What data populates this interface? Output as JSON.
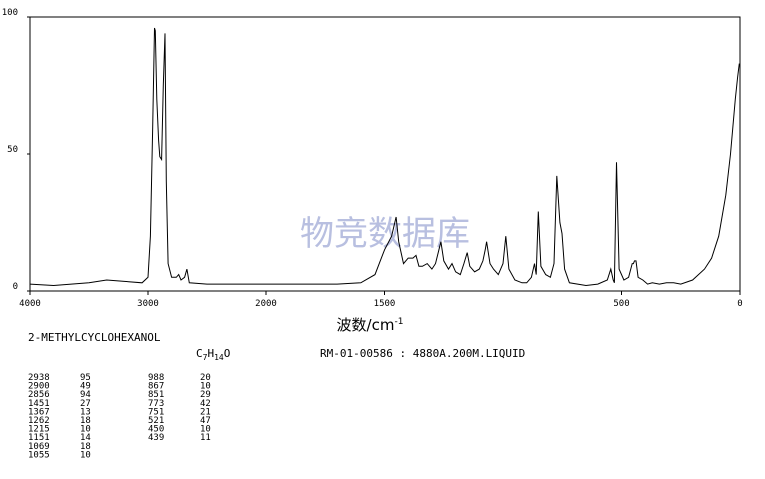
{
  "chart_data": {
    "type": "line",
    "color": "#000000",
    "xlabel": [
      "波数/cm",
      "-1"
    ],
    "watermark": "物竞数据库",
    "x": [
      4000,
      3800,
      3500,
      3350,
      3200,
      3050,
      3000,
      2980,
      2960,
      2945,
      2938,
      2925,
      2910,
      2900,
      2885,
      2870,
      2856,
      2845,
      2830,
      2800,
      2760,
      2740,
      2720,
      2690,
      2670,
      2650,
      2500,
      2000,
      1700,
      1600,
      1540,
      1500,
      1470,
      1451,
      1440,
      1420,
      1400,
      1380,
      1367,
      1355,
      1340,
      1320,
      1300,
      1285,
      1262,
      1250,
      1230,
      1215,
      1200,
      1180,
      1165,
      1151,
      1140,
      1120,
      1100,
      1085,
      1075,
      1069,
      1055,
      1040,
      1020,
      1000,
      988,
      975,
      950,
      920,
      900,
      880,
      867,
      860,
      851,
      840,
      820,
      800,
      785,
      773,
      760,
      751,
      740,
      720,
      650,
      600,
      560,
      545,
      535,
      530,
      521,
      510,
      490,
      470,
      455,
      450,
      445,
      439,
      430,
      410,
      390,
      370,
      340,
      310,
      280,
      250,
      200,
      150,
      120,
      90,
      60,
      40,
      20,
      10,
      3
    ],
    "values": [
      2.5,
      2,
      3,
      4,
      3.5,
      3,
      5,
      20,
      60,
      96,
      95,
      70,
      55,
      49,
      48,
      75,
      94,
      40,
      10,
      5,
      5,
      6,
      4,
      5,
      8,
      3,
      2.5,
      2.5,
      2.5,
      3,
      6,
      15,
      20,
      27,
      18,
      10,
      12,
      12,
      13,
      9,
      9,
      10,
      8,
      10,
      18,
      11,
      8,
      10,
      7,
      6,
      10,
      14,
      9,
      7,
      8,
      11,
      15,
      18,
      10,
      8,
      6,
      10,
      20,
      8,
      4,
      3,
      3,
      5,
      10,
      6,
      29,
      9,
      6,
      5,
      10,
      42,
      25,
      21,
      8,
      3,
      2,
      2.5,
      4,
      8,
      4,
      3,
      47,
      8,
      4,
      5,
      10,
      10,
      11,
      11,
      5,
      4,
      2.5,
      3,
      2.5,
      3,
      3,
      2.5,
      4,
      8,
      12,
      20,
      35,
      50,
      70,
      78,
      83
    ],
    "xlim": [
      4000,
      0
    ],
    "xticks": [
      4000,
      3000,
      2000,
      1500,
      500,
      0
    ],
    "ylim": [
      0,
      100
    ],
    "yticks": [
      0,
      50,
      100
    ]
  },
  "compound": "2-METHYLCYCLOHEXANOL",
  "formula": [
    "C",
    "7",
    "H",
    "14",
    "O"
  ],
  "spectrum_id": "RM-01-00586 : 4880A.200M.LIQUID",
  "peak_table": [
    [
      [
        2938,
        95
      ],
      [
        2900,
        49
      ],
      [
        2856,
        94
      ],
      [
        1451,
        27
      ],
      [
        1367,
        13
      ],
      [
        1262,
        18
      ],
      [
        1215,
        10
      ],
      [
        1151,
        14
      ],
      [
        1069,
        18
      ],
      [
        1055,
        10
      ]
    ],
    [
      [
        988,
        20
      ],
      [
        867,
        10
      ],
      [
        851,
        29
      ],
      [
        773,
        42
      ],
      [
        751,
        21
      ],
      [
        521,
        47
      ],
      [
        450,
        10
      ],
      [
        439,
        11
      ]
    ]
  ]
}
